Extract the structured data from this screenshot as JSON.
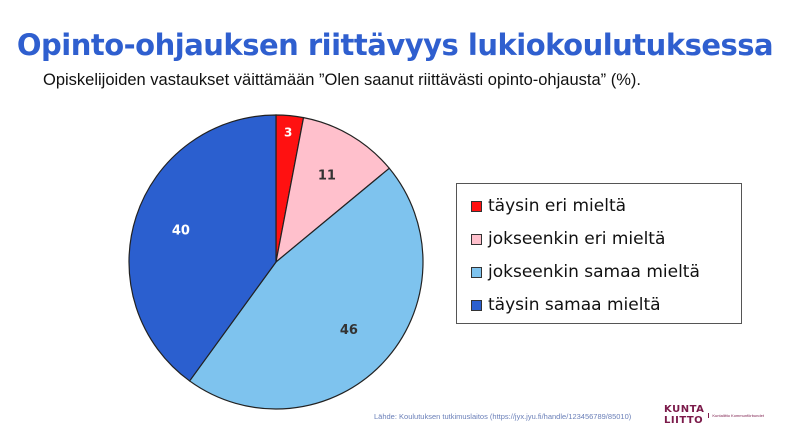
{
  "title": "Opinto-ohjauksen riittävyys lukiokoulutuksessa",
  "subtitle": "Opiskelijoiden vastaukset väittämään ”Olen saanut riittävästi opinto-ohjausta” (%).",
  "chart_data": {
    "type": "pie",
    "categories": [
      "täysin eri mieltä",
      "jokseenkin eri mieltä",
      "jokseenkin samaa mieltä",
      "täysin samaa mieltä"
    ],
    "values": [
      3,
      11,
      46,
      40
    ],
    "data_labels": [
      "3",
      "11",
      "46",
      "40"
    ],
    "colors": [
      "#ff1111",
      "#ffc0cc",
      "#7ec3ee",
      "#2b5fcf"
    ],
    "label_colors": [
      "#ffffff",
      "#333333",
      "#333333",
      "#ffffff"
    ],
    "start_angle": "12 o'clock",
    "direction": "clockwise",
    "legend_position": "right"
  },
  "legend": {
    "items": [
      {
        "label": "täysin eri mieltä",
        "color": "#ff1111"
      },
      {
        "label": "jokseenkin eri mieltä",
        "color": "#ffc0cc"
      },
      {
        "label": "jokseenkin samaa mieltä",
        "color": "#7ec3ee"
      },
      {
        "label": "täysin samaa mieltä",
        "color": "#2b5fcf"
      }
    ]
  },
  "footer": {
    "source": "Lähde: Koulutuksen tutkimuslaitos (https://jyx.jyu.fi/handle/123456789/85010)",
    "logo_top": "KUNTA",
    "logo_bottom": "LIITTO",
    "logo_tagline": "Kuntaliitto Kommunförbundet"
  }
}
